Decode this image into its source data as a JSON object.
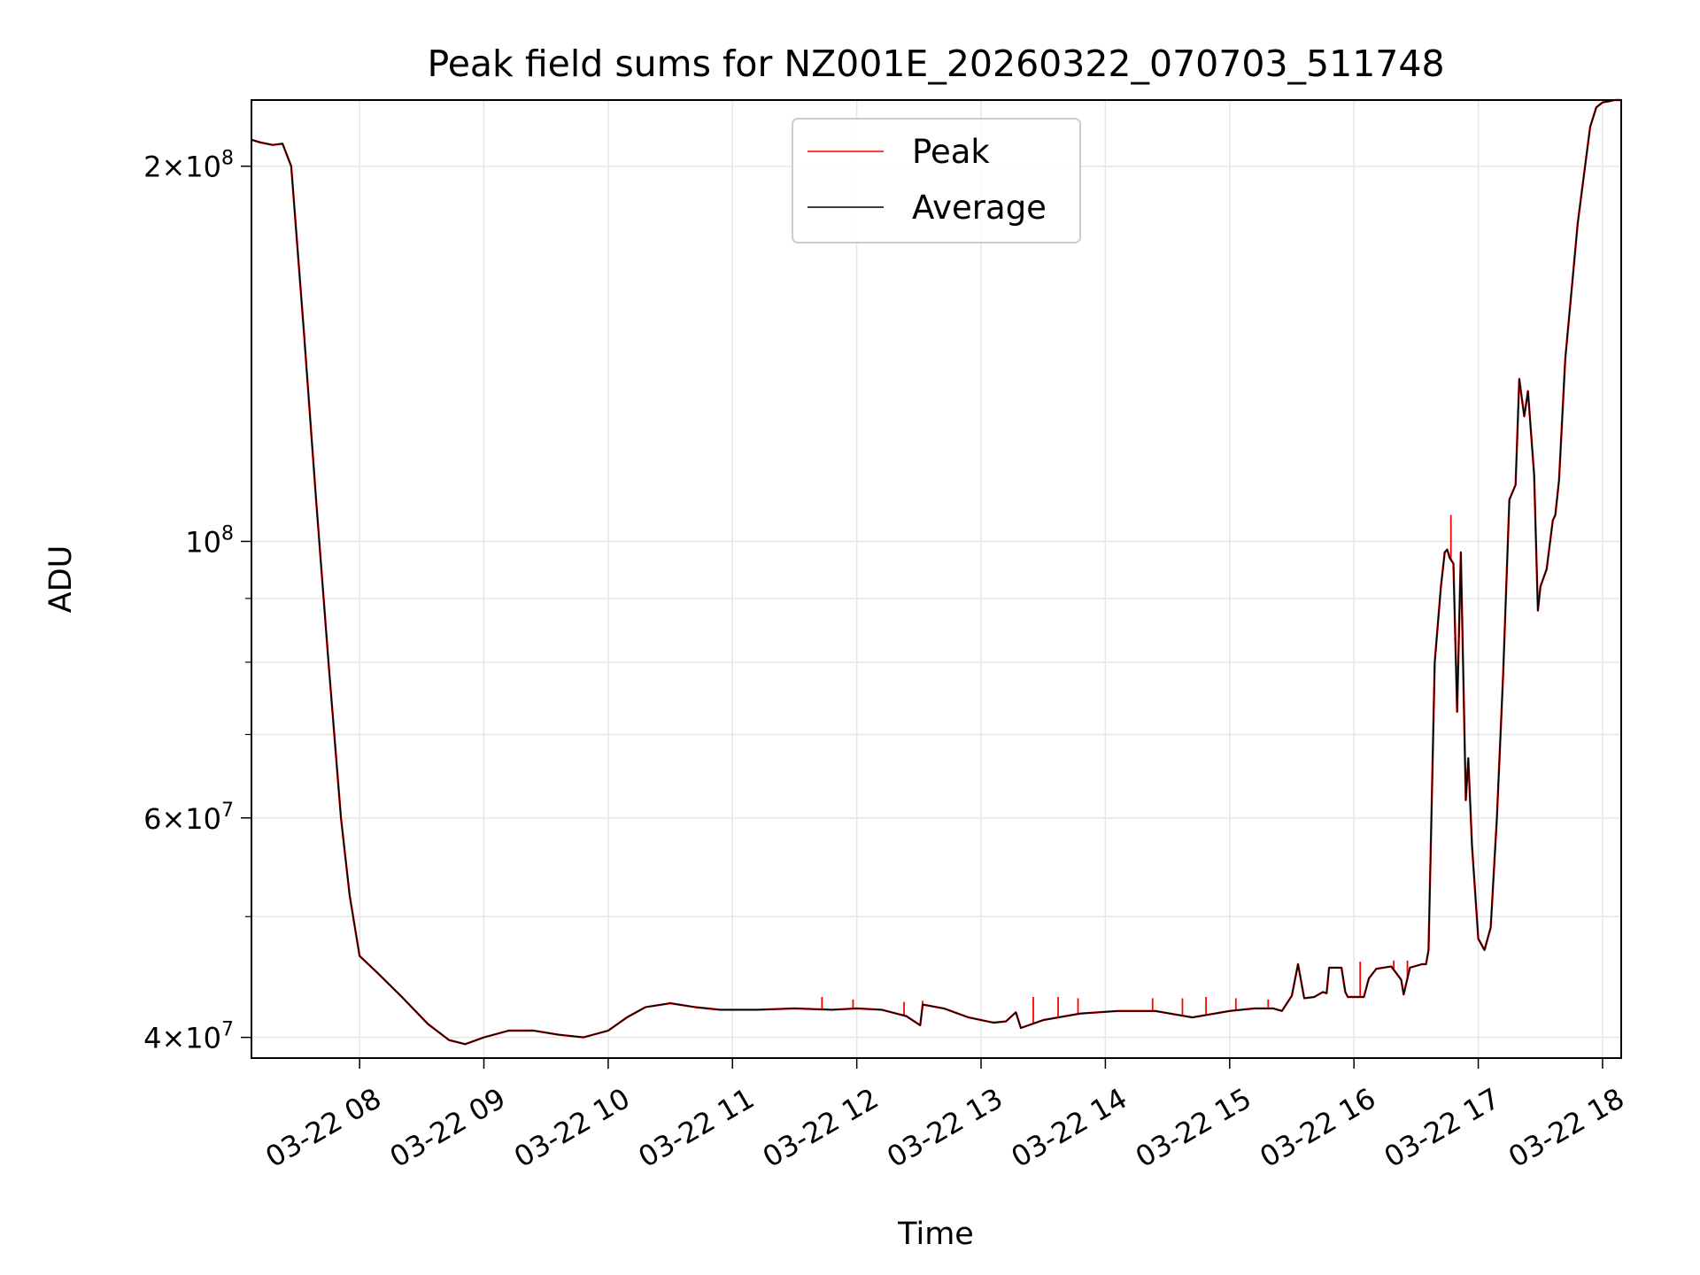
{
  "chart_data": {
    "type": "line",
    "title": "Peak field sums for NZ001E_20260322_070703_511748",
    "xlabel": "Time",
    "ylabel": "ADU",
    "yscale": "log",
    "ylim": [
      38500000,
      226000000
    ],
    "xlim_hours": [
      7.13,
      18.15
    ],
    "grid": true,
    "legend_position": "upper center",
    "x_ticks": [
      {
        "hour": 8,
        "label": "03-22 08"
      },
      {
        "hour": 9,
        "label": "03-22 09"
      },
      {
        "hour": 10,
        "label": "03-22 10"
      },
      {
        "hour": 11,
        "label": "03-22 11"
      },
      {
        "hour": 12,
        "label": "03-22 12"
      },
      {
        "hour": 13,
        "label": "03-22 13"
      },
      {
        "hour": 14,
        "label": "03-22 14"
      },
      {
        "hour": 15,
        "label": "03-22 15"
      },
      {
        "hour": 16,
        "label": "03-22 16"
      },
      {
        "hour": 17,
        "label": "03-22 17"
      },
      {
        "hour": 18,
        "label": "03-22 18"
      }
    ],
    "y_major_ticks": [
      {
        "value": 40000000,
        "mant": "4",
        "exp": "7"
      },
      {
        "value": 60000000,
        "mant": "6",
        "exp": "7"
      },
      {
        "value": 100000000,
        "mant": "",
        "exp": "8"
      },
      {
        "value": 200000000,
        "mant": "2",
        "exp": "8"
      }
    ],
    "y_minor_ticks": [
      50000000,
      70000000,
      80000000,
      90000000
    ],
    "series": [
      {
        "name": "Peak",
        "color": "#ff0000",
        "spikes": [
          {
            "x": 11.72,
            "y": 43100000
          },
          {
            "x": 11.97,
            "y": 42900000
          },
          {
            "x": 12.38,
            "y": 42700000
          },
          {
            "x": 12.53,
            "y": 42800000
          },
          {
            "x": 13.42,
            "y": 43100000
          },
          {
            "x": 13.62,
            "y": 43100000
          },
          {
            "x": 13.78,
            "y": 43000000
          },
          {
            "x": 14.38,
            "y": 43000000
          },
          {
            "x": 14.62,
            "y": 43000000
          },
          {
            "x": 14.81,
            "y": 43100000
          },
          {
            "x": 15.05,
            "y": 43000000
          },
          {
            "x": 15.31,
            "y": 42900000
          },
          {
            "x": 16.05,
            "y": 46000000
          },
          {
            "x": 16.32,
            "y": 46100000
          },
          {
            "x": 16.43,
            "y": 46100000
          },
          {
            "x": 16.78,
            "y": 105000000
          }
        ]
      },
      {
        "name": "Average",
        "color": "#000000",
        "x": [
          7.13,
          7.2,
          7.3,
          7.38,
          7.45,
          7.55,
          7.65,
          7.75,
          7.85,
          7.92,
          8.0,
          8.15,
          8.35,
          8.55,
          8.72,
          8.85,
          9.0,
          9.2,
          9.4,
          9.6,
          9.8,
          10.0,
          10.15,
          10.3,
          10.5,
          10.7,
          10.9,
          11.2,
          11.5,
          11.8,
          12.0,
          12.2,
          12.4,
          12.51,
          12.53,
          12.7,
          12.9,
          13.1,
          13.2,
          13.28,
          13.32,
          13.5,
          13.8,
          14.1,
          14.4,
          14.7,
          15.0,
          15.2,
          15.35,
          15.42,
          15.5,
          15.55,
          15.6,
          15.68,
          15.75,
          15.78,
          15.8,
          15.9,
          15.93,
          15.95,
          16.08,
          16.12,
          16.18,
          16.3,
          16.38,
          16.4,
          16.45,
          16.55,
          16.58,
          16.6,
          16.62,
          16.65,
          16.7,
          16.73,
          16.75,
          16.77,
          16.8,
          16.83,
          16.86,
          16.9,
          16.92,
          16.95,
          17.0,
          17.05,
          17.1,
          17.15,
          17.2,
          17.25,
          17.3,
          17.33,
          17.37,
          17.4,
          17.45,
          17.48,
          17.5,
          17.55,
          17.6,
          17.62,
          17.65,
          17.7,
          17.8,
          17.9,
          17.95,
          18.0,
          18.05,
          18.1,
          18.15
        ],
        "y": [
          210000000,
          209000000,
          208000000,
          208500000,
          200000000,
          148000000,
          108000000,
          80000000,
          60000000,
          52000000,
          46500000,
          45000000,
          43000000,
          41000000,
          39800000,
          39500000,
          40000000,
          40500000,
          40500000,
          40200000,
          40000000,
          40500000,
          41500000,
          42300000,
          42600000,
          42300000,
          42100000,
          42100000,
          42200000,
          42100000,
          42200000,
          42100000,
          41600000,
          40900000,
          42500000,
          42200000,
          41500000,
          41100000,
          41200000,
          41900000,
          40700000,
          41300000,
          41800000,
          42000000,
          42000000,
          41500000,
          42000000,
          42200000,
          42200000,
          42000000,
          43200000,
          45800000,
          43000000,
          43100000,
          43500000,
          43400000,
          45500000,
          45500000,
          43500000,
          43100000,
          43100000,
          44600000,
          45400000,
          45600000,
          44500000,
          43300000,
          45500000,
          45800000,
          45800000,
          47000000,
          58000000,
          80000000,
          92000000,
          98000000,
          98500000,
          97000000,
          96000000,
          73000000,
          98000000,
          62000000,
          67000000,
          57000000,
          48000000,
          47000000,
          49000000,
          60000000,
          78000000,
          108000000,
          111000000,
          135000000,
          126000000,
          132000000,
          113000000,
          88000000,
          92000000,
          95000000,
          104000000,
          105000000,
          112000000,
          140000000,
          180000000,
          215000000,
          223000000,
          225000000,
          225500000,
          226000000,
          226000000
        ]
      }
    ]
  }
}
